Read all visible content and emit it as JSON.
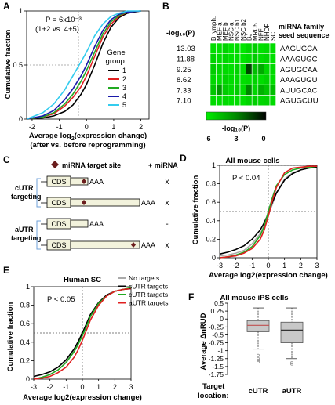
{
  "panels": {
    "A": {
      "letter": "A",
      "ylabel": "Cumulative fraction",
      "xlabel_line1": "Average log",
      "xlabel_sub": "2",
      "xlabel_line1b": "(expression change)",
      "xlabel_line2": "(after vs. before reprogramming)",
      "pvalue_line1": "P = 6x10⁻³",
      "pvalue_line2": "(1+2 vs. 4+5)",
      "legend_title_line1": "Gene",
      "legend_title_line2": "group:",
      "xticks": [
        "-2",
        "-1",
        "0",
        "1",
        "2"
      ],
      "yticks": [
        "0",
        "0.5",
        "1"
      ]
    },
    "B": {
      "letter": "B",
      "row_header": "-log₁₀(P)",
      "col_header_line1": "miRNA family",
      "col_header_line2": "seed sequence",
      "columns": [
        "B lymph.",
        "MEF a",
        "MEF b",
        "NSC a",
        "NSC b1",
        "NSC b2",
        "BJ",
        "MRC5",
        "NFF",
        "NHDF",
        "SC"
      ],
      "rows": [
        {
          "value": "13.03",
          "seed": "AAGUGCA"
        },
        {
          "value": "11.88",
          "seed": "AAAGUGC"
        },
        {
          "value": "9.25",
          "seed": "AGUGCAA"
        },
        {
          "value": "8.62",
          "seed": "AAAGUGU"
        },
        {
          "value": "7.33",
          "seed": "AUUGCAC"
        },
        {
          "value": "7.10",
          "seed": "AGUGCUU"
        }
      ],
      "colorbar_label": "-log₁₀(P)",
      "colorbar_ticks": [
        "6",
        "3",
        "0"
      ]
    },
    "C": {
      "letter": "C",
      "legend_text": "miRNA target site",
      "plus_mirna": "+ miRNA",
      "cds": "CDS",
      "polya": "AAA",
      "group1_line1": "cUTR",
      "group1_line2": "targeting",
      "group2_line1": "aUTR",
      "group2_line2": "targeting",
      "marks": [
        "x",
        "x",
        "-",
        "x"
      ]
    },
    "D": {
      "letter": "D",
      "title": "All mouse cells",
      "pvalue": "P < 0.04",
      "ylabel": "Cumulative fraction",
      "xlabel": "Average log2(expression change)",
      "xticks": [
        "-3",
        "-2",
        "-1",
        "0",
        "1",
        "2",
        "3"
      ],
      "yticks": [
        "0",
        "0.2",
        "0.4",
        "0.6",
        "0.8",
        "1"
      ]
    },
    "E": {
      "letter": "E",
      "title": "Human SC",
      "pvalue": "P < 0.05",
      "ylabel": "Cumulative fraction",
      "xlabel": "Average log2(expression change)",
      "xticks": [
        "-3",
        "-2",
        "-1",
        "0",
        "1",
        "2",
        "3"
      ],
      "yticks": [
        "0",
        "0.2",
        "0.4",
        "0.6",
        "0.8",
        "1"
      ],
      "legend": [
        "No targets",
        "sUTR targets",
        "cUTR targets",
        "aUTR targets"
      ]
    },
    "F": {
      "letter": "F",
      "title": "All mouse iPS cells",
      "ylabel": "Average ΔnRUD",
      "yticks": [
        "0.5",
        "0.25",
        "0",
        "-0.25",
        "-0.5",
        "-0.75",
        "-1",
        "-1.25",
        "-1.5",
        "-1.75"
      ],
      "target_label_line1": "Target",
      "target_label_line2": "location:",
      "categories": [
        "cUTR",
        "aUTR"
      ]
    }
  },
  "chart_data": [
    {
      "panel": "A",
      "type": "line",
      "xlim": [
        -2.2,
        2.3
      ],
      "ylim": [
        0,
        1
      ],
      "legend_position": "right",
      "series": [
        {
          "name": "1",
          "color": "#000000",
          "x": [
            -2.2,
            -1.6,
            -1.2,
            -0.8,
            -0.5,
            -0.2,
            0.0,
            0.3,
            0.6,
            0.9,
            1.2,
            1.5,
            2.0
          ],
          "y": [
            0.0,
            0.01,
            0.03,
            0.07,
            0.13,
            0.23,
            0.32,
            0.5,
            0.7,
            0.85,
            0.94,
            0.98,
            1.0
          ]
        },
        {
          "name": "2",
          "color": "#e02020",
          "x": [
            -2.2,
            -1.6,
            -1.2,
            -0.8,
            -0.5,
            -0.2,
            0.0,
            0.3,
            0.6,
            0.9,
            1.2,
            1.5,
            2.0
          ],
          "y": [
            0.0,
            0.02,
            0.05,
            0.12,
            0.2,
            0.3,
            0.4,
            0.58,
            0.76,
            0.88,
            0.95,
            0.99,
            1.0
          ]
        },
        {
          "name": "3",
          "color": "#22aa22",
          "x": [
            -2.2,
            -1.6,
            -1.2,
            -0.8,
            -0.5,
            -0.2,
            0.0,
            0.3,
            0.6,
            0.9,
            1.2,
            1.5,
            2.0
          ],
          "y": [
            0.0,
            0.02,
            0.06,
            0.14,
            0.23,
            0.35,
            0.45,
            0.62,
            0.79,
            0.9,
            0.96,
            0.99,
            1.0
          ]
        },
        {
          "name": "4",
          "color": "#1a1aaa",
          "x": [
            -2.2,
            -1.6,
            -1.2,
            -0.8,
            -0.5,
            -0.2,
            0.0,
            0.3,
            0.6,
            0.9,
            1.2,
            1.5,
            2.0
          ],
          "y": [
            0.0,
            0.03,
            0.08,
            0.18,
            0.28,
            0.4,
            0.5,
            0.67,
            0.82,
            0.92,
            0.97,
            0.99,
            1.0
          ]
        },
        {
          "name": "5",
          "color": "#33ccee",
          "x": [
            -2.2,
            -1.6,
            -1.2,
            -0.8,
            -0.5,
            -0.2,
            0.0,
            0.3,
            0.6,
            0.9,
            1.2,
            1.5,
            2.0
          ],
          "y": [
            0.0,
            0.06,
            0.14,
            0.27,
            0.4,
            0.53,
            0.62,
            0.77,
            0.88,
            0.95,
            0.98,
            1.0,
            1.0
          ]
        }
      ]
    },
    {
      "panel": "B",
      "type": "heatmap",
      "color_scale": [
        "#00ee00",
        "#008800",
        "#000000"
      ],
      "vmin": 0,
      "vmax": 6,
      "columns": [
        "B lymph.",
        "MEF a",
        "MEF b",
        "NSC a",
        "NSC b1",
        "NSC b2",
        "BJ",
        "MRC5",
        "NFF",
        "NHDF",
        "SC"
      ],
      "rows": [
        "AAGUGCA",
        "AAAGUGC",
        "AGUGCAA",
        "AAAGUGU",
        "AUUGCAC",
        "AGUGCUU"
      ],
      "values": [
        [
          5.5,
          5.6,
          5.2,
          5.7,
          5.4,
          5.8,
          5.3,
          5.1,
          5.6,
          5.4,
          5.5
        ],
        [
          5.2,
          5.5,
          5.3,
          5.6,
          5.5,
          5.7,
          5.4,
          5.0,
          5.5,
          5.3,
          5.6
        ],
        [
          5.0,
          5.3,
          5.4,
          5.6,
          5.2,
          5.6,
          1.5,
          4.6,
          4.0,
          5.3,
          5.4
        ],
        [
          5.3,
          5.5,
          5.2,
          5.5,
          5.4,
          5.6,
          5.4,
          5.2,
          5.5,
          5.2,
          5.5
        ],
        [
          4.8,
          3.5,
          5.0,
          5.4,
          5.0,
          5.5,
          3.0,
          5.3,
          4.2,
          4.8,
          4.6
        ],
        [
          5.4,
          5.5,
          5.4,
          5.6,
          5.5,
          5.6,
          5.2,
          5.1,
          5.3,
          5.2,
          5.4
        ]
      ]
    },
    {
      "panel": "D",
      "type": "line",
      "xlim": [
        -3,
        3
      ],
      "ylim": [
        0,
        1
      ],
      "series": [
        {
          "name": "No targets",
          "color": "#aaaaaa",
          "x": [
            -3,
            -2.5,
            -2,
            -1.5,
            -1,
            -0.5,
            -0.25,
            0,
            0.25,
            0.5,
            1,
            1.5,
            2,
            2.5,
            3
          ],
          "y": [
            0.02,
            0.03,
            0.05,
            0.08,
            0.15,
            0.26,
            0.35,
            0.46,
            0.58,
            0.7,
            0.85,
            0.92,
            0.95,
            0.97,
            0.98
          ]
        },
        {
          "name": "sUTR targets",
          "color": "#000000",
          "x": [
            -3,
            -2.5,
            -2,
            -1.5,
            -1,
            -0.5,
            -0.25,
            0,
            0.25,
            0.5,
            1,
            1.5,
            2,
            2.5,
            3
          ],
          "y": [
            0.04,
            0.06,
            0.09,
            0.13,
            0.2,
            0.3,
            0.38,
            0.48,
            0.6,
            0.7,
            0.84,
            0.91,
            0.95,
            0.97,
            0.98
          ]
        },
        {
          "name": "cUTR targets",
          "color": "#22aa22",
          "x": [
            -3,
            -2.5,
            -2,
            -1.5,
            -1,
            -0.5,
            -0.25,
            0,
            0.25,
            0.5,
            1,
            1.5,
            2,
            2.5,
            3
          ],
          "y": [
            0.0,
            0.01,
            0.03,
            0.06,
            0.12,
            0.24,
            0.34,
            0.5,
            0.65,
            0.78,
            0.9,
            0.95,
            0.97,
            0.98,
            0.99
          ]
        },
        {
          "name": "aUTR targets",
          "color": "#e02020",
          "x": [
            -3,
            -2.5,
            -2,
            -1.5,
            -1,
            -0.5,
            -0.25,
            0,
            0.25,
            0.5,
            1,
            1.5,
            2,
            2.5,
            3
          ],
          "y": [
            0.0,
            0.01,
            0.02,
            0.05,
            0.1,
            0.2,
            0.3,
            0.45,
            0.62,
            0.76,
            0.92,
            0.97,
            0.98,
            0.99,
            0.99
          ]
        }
      ]
    },
    {
      "panel": "E",
      "type": "line",
      "xlim": [
        -3,
        3
      ],
      "ylim": [
        0,
        1
      ],
      "legend_position": "top-right",
      "series": [
        {
          "name": "No targets",
          "color": "#aaaaaa",
          "x": [
            -3,
            -2.5,
            -2,
            -1.5,
            -1,
            -0.5,
            -0.25,
            0,
            0.25,
            0.5,
            1,
            1.5,
            2,
            2.5,
            3
          ],
          "y": [
            0.03,
            0.05,
            0.08,
            0.13,
            0.2,
            0.31,
            0.39,
            0.48,
            0.58,
            0.68,
            0.82,
            0.9,
            0.95,
            0.97,
            0.98
          ]
        },
        {
          "name": "sUTR targets",
          "color": "#000000",
          "x": [
            -3,
            -2.5,
            -2,
            -1.5,
            -1,
            -0.5,
            -0.25,
            0,
            0.25,
            0.5,
            1,
            1.5,
            2,
            2.5,
            3
          ],
          "y": [
            0.03,
            0.05,
            0.08,
            0.13,
            0.21,
            0.33,
            0.41,
            0.5,
            0.6,
            0.7,
            0.83,
            0.91,
            0.95,
            0.97,
            0.98
          ]
        },
        {
          "name": "cUTR targets",
          "color": "#22aa22",
          "x": [
            -3,
            -2.5,
            -2,
            -1.5,
            -1,
            -0.5,
            -0.25,
            0,
            0.25,
            0.5,
            1,
            1.5,
            2,
            2.5,
            3
          ],
          "y": [
            0.0,
            0.02,
            0.05,
            0.1,
            0.18,
            0.3,
            0.38,
            0.47,
            0.57,
            0.68,
            0.82,
            0.9,
            0.95,
            0.97,
            0.99
          ]
        },
        {
          "name": "aUTR targets",
          "color": "#e02020",
          "x": [
            -3,
            -2.5,
            -2,
            -1.5,
            -1,
            -0.5,
            -0.25,
            0,
            0.25,
            0.5,
            1,
            1.5,
            2,
            2.5,
            3
          ],
          "y": [
            0.0,
            0.01,
            0.03,
            0.07,
            0.13,
            0.24,
            0.32,
            0.42,
            0.53,
            0.64,
            0.8,
            0.9,
            0.95,
            0.97,
            0.98
          ]
        }
      ]
    },
    {
      "panel": "F",
      "type": "box",
      "ylim": [
        -1.75,
        0.5
      ],
      "categories": [
        "cUTR",
        "aUTR"
      ],
      "boxes": [
        {
          "name": "cUTR",
          "whisker_low": -0.95,
          "q1": -0.4,
          "median": -0.2,
          "q3": -0.05,
          "whisker_high": 0.35,
          "outliers": [
            -1.15,
            -1.25,
            -1.3,
            -1.35
          ]
        },
        {
          "name": "aUTR",
          "whisker_low": -1.25,
          "q1": -0.75,
          "median": -0.35,
          "q3": -0.1,
          "whisker_high": 0.35,
          "outliers": [
            -1.38,
            -1.42
          ]
        }
      ]
    }
  ]
}
